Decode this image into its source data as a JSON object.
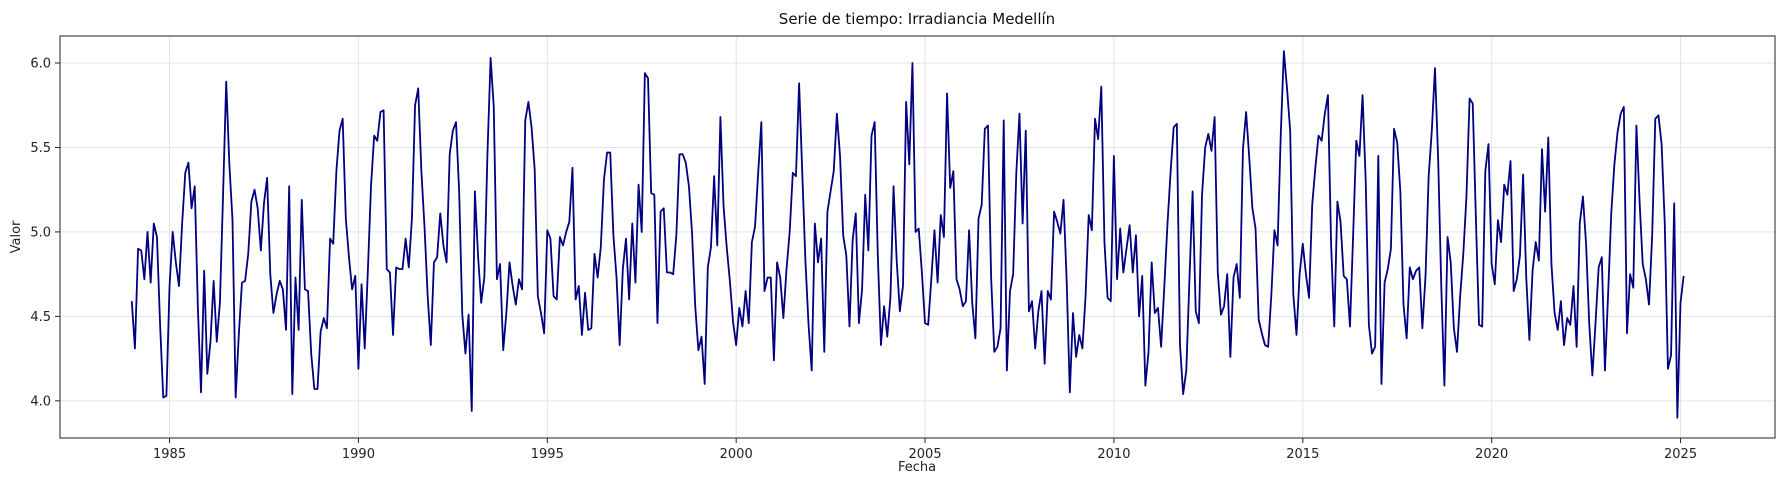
{
  "chart_data": {
    "type": "line",
    "title": "Serie de tiempo: Irradiancia Medellín",
    "xlabel": "Fecha",
    "ylabel": "Valor",
    "xlim": [
      1982.1,
      2027.5
    ],
    "ylim": [
      3.78,
      6.16
    ],
    "grid": true,
    "line_color": "#000080",
    "x_ticks": [
      1985,
      1990,
      1995,
      2000,
      2005,
      2010,
      2015,
      2020,
      2025
    ],
    "x_tick_labels": [
      "1985",
      "1990",
      "1995",
      "2000",
      "2005",
      "2010",
      "2015",
      "2020",
      "2025"
    ],
    "y_ticks": [
      4.0,
      4.5,
      5.0,
      5.5,
      6.0
    ],
    "y_tick_labels": [
      "4.0",
      "4.5",
      "5.0",
      "5.5",
      "6.0"
    ],
    "series": [
      {
        "name": "Irradiancia",
        "start_year": 1984.0,
        "step_years": 0.08333,
        "values": [
          4.59,
          4.31,
          4.9,
          4.89,
          4.72,
          5.0,
          4.7,
          5.05,
          4.97,
          4.45,
          4.02,
          4.03,
          4.68,
          5.0,
          4.82,
          4.68,
          5.05,
          5.35,
          5.41,
          5.14,
          5.27,
          4.55,
          4.05,
          4.77,
          4.16,
          4.35,
          4.71,
          4.35,
          4.58,
          5.22,
          5.89,
          5.4,
          5.07,
          4.02,
          4.39,
          4.7,
          4.71,
          4.87,
          5.18,
          5.25,
          5.14,
          4.89,
          5.17,
          5.32,
          4.75,
          4.52,
          4.63,
          4.71,
          4.66,
          4.42,
          5.27,
          4.04,
          4.73,
          4.42,
          5.19,
          4.66,
          4.65,
          4.28,
          4.07,
          4.07,
          4.41,
          4.49,
          4.43,
          4.96,
          4.93,
          5.36,
          5.6,
          5.67,
          5.08,
          4.85,
          4.66,
          4.74,
          4.19,
          4.69,
          4.31,
          4.77,
          5.27,
          5.57,
          5.54,
          5.71,
          5.72,
          4.78,
          4.76,
          4.39,
          4.79,
          4.78,
          4.78,
          4.96,
          4.79,
          5.08,
          5.75,
          5.85,
          5.36,
          5.03,
          4.62,
          4.33,
          4.82,
          4.85,
          5.11,
          4.92,
          4.82,
          5.46,
          5.6,
          5.65,
          5.24,
          4.51,
          4.28,
          4.51,
          3.94,
          5.24,
          4.86,
          4.58,
          4.73,
          5.47,
          6.03,
          5.74,
          4.72,
          4.81,
          4.3,
          4.52,
          4.82,
          4.68,
          4.57,
          4.72,
          4.66,
          5.66,
          5.77,
          5.62,
          5.37,
          4.62,
          4.52,
          4.4,
          5.01,
          4.96,
          4.62,
          4.6,
          4.97,
          4.92,
          5.0,
          5.06,
          5.38,
          4.6,
          4.68,
          4.39,
          4.64,
          4.42,
          4.43,
          4.87,
          4.73,
          4.91,
          5.31,
          5.47,
          5.47,
          4.98,
          4.73,
          4.33,
          4.78,
          4.96,
          4.6,
          5.05,
          4.7,
          5.28,
          5.0,
          5.94,
          5.91,
          5.23,
          5.22,
          4.46,
          5.12,
          5.14,
          4.76,
          4.76,
          4.75,
          4.98,
          5.46,
          5.46,
          5.41,
          5.27,
          4.99,
          4.56,
          4.3,
          4.38,
          4.1,
          4.79,
          4.91,
          5.33,
          4.92,
          5.68,
          5.15,
          4.91,
          4.71,
          4.47,
          4.33,
          4.55,
          4.44,
          4.65,
          4.46,
          4.94,
          5.03,
          5.35,
          5.65,
          4.65,
          4.73,
          4.73,
          4.24,
          4.82,
          4.73,
          4.49,
          4.78,
          5.0,
          5.35,
          5.33,
          5.88,
          5.35,
          4.83,
          4.45,
          4.18,
          5.05,
          4.82,
          4.96,
          4.29,
          5.12,
          5.24,
          5.36,
          5.7,
          5.45,
          4.98,
          4.86,
          4.44,
          4.95,
          5.11,
          4.46,
          4.66,
          5.22,
          4.89,
          5.57,
          5.65,
          4.86,
          4.33,
          4.56,
          4.38,
          4.61,
          5.27,
          4.83,
          4.53,
          4.68,
          5.77,
          5.4,
          6.0,
          5.0,
          5.02,
          4.76,
          4.46,
          4.45,
          4.72,
          5.01,
          4.7,
          5.1,
          4.97,
          5.82,
          5.26,
          5.36,
          4.72,
          4.66,
          4.56,
          4.59,
          5.01,
          4.58,
          4.37,
          5.08,
          5.16,
          5.61,
          5.63,
          4.73,
          4.29,
          4.32,
          4.43,
          5.66,
          4.18,
          4.65,
          4.75,
          5.35,
          5.7,
          5.05,
          5.6,
          4.53,
          4.59,
          4.31,
          4.53,
          4.65,
          4.22,
          4.65,
          4.6,
          5.12,
          5.06,
          4.99,
          5.19,
          4.71,
          4.05,
          4.52,
          4.26,
          4.39,
          4.31,
          4.62,
          5.1,
          5.01,
          5.67,
          5.55,
          5.86,
          4.94,
          4.61,
          4.59,
          5.45,
          4.72,
          5.02,
          4.76,
          4.9,
          5.04,
          4.76,
          4.98,
          4.5,
          4.74,
          4.09,
          4.29,
          4.82,
          4.52,
          4.55,
          4.32,
          4.67,
          5.04,
          5.35,
          5.62,
          5.64,
          4.33,
          4.04,
          4.18,
          4.72,
          5.24,
          4.53,
          4.46,
          5.22,
          5.5,
          5.58,
          5.48,
          5.68,
          4.76,
          4.51,
          4.56,
          4.75,
          4.26,
          4.73,
          4.81,
          4.61,
          5.49,
          5.71,
          5.44,
          5.14,
          5.02,
          4.48,
          4.4,
          4.33,
          4.32,
          4.62,
          5.01,
          4.92,
          5.57,
          6.07,
          5.85,
          5.6,
          4.63,
          4.39,
          4.75,
          4.93,
          4.75,
          4.61,
          5.16,
          5.38,
          5.57,
          5.54,
          5.7,
          5.81,
          4.93,
          4.44,
          5.18,
          5.06,
          4.74,
          4.72,
          4.44,
          4.98,
          5.54,
          5.45,
          5.81,
          5.3,
          4.45,
          4.28,
          4.32,
          5.45,
          4.1,
          4.7,
          4.78,
          4.9,
          5.61,
          5.53,
          5.24,
          4.57,
          4.37,
          4.79,
          4.72,
          4.77,
          4.79,
          4.43,
          4.74,
          5.33,
          5.6,
          5.97,
          5.44,
          4.68,
          4.09,
          4.97,
          4.82,
          4.43,
          4.29,
          4.62,
          4.87,
          5.21,
          5.79,
          5.76,
          5.08,
          4.45,
          4.44,
          5.36,
          5.52,
          4.81,
          4.69,
          5.07,
          4.94,
          5.28,
          5.22,
          5.42,
          4.65,
          4.72,
          4.86,
          5.34,
          4.73,
          4.36,
          4.77,
          4.94,
          4.83,
          5.49,
          5.12,
          5.56,
          4.81,
          4.52,
          4.42,
          4.59,
          4.33,
          4.49,
          4.45,
          4.68,
          4.32,
          5.05,
          5.21,
          4.93,
          4.46,
          4.15,
          4.46,
          4.79,
          4.85,
          4.18,
          4.63,
          5.11,
          5.4,
          5.59,
          5.7,
          5.74,
          4.4,
          4.75,
          4.67,
          5.63,
          5.18,
          4.81,
          4.72,
          4.57,
          4.98,
          5.67,
          5.69,
          5.52,
          5.05,
          4.19,
          4.27,
          5.17,
          3.9,
          4.58,
          4.74
        ]
      }
    ]
  }
}
